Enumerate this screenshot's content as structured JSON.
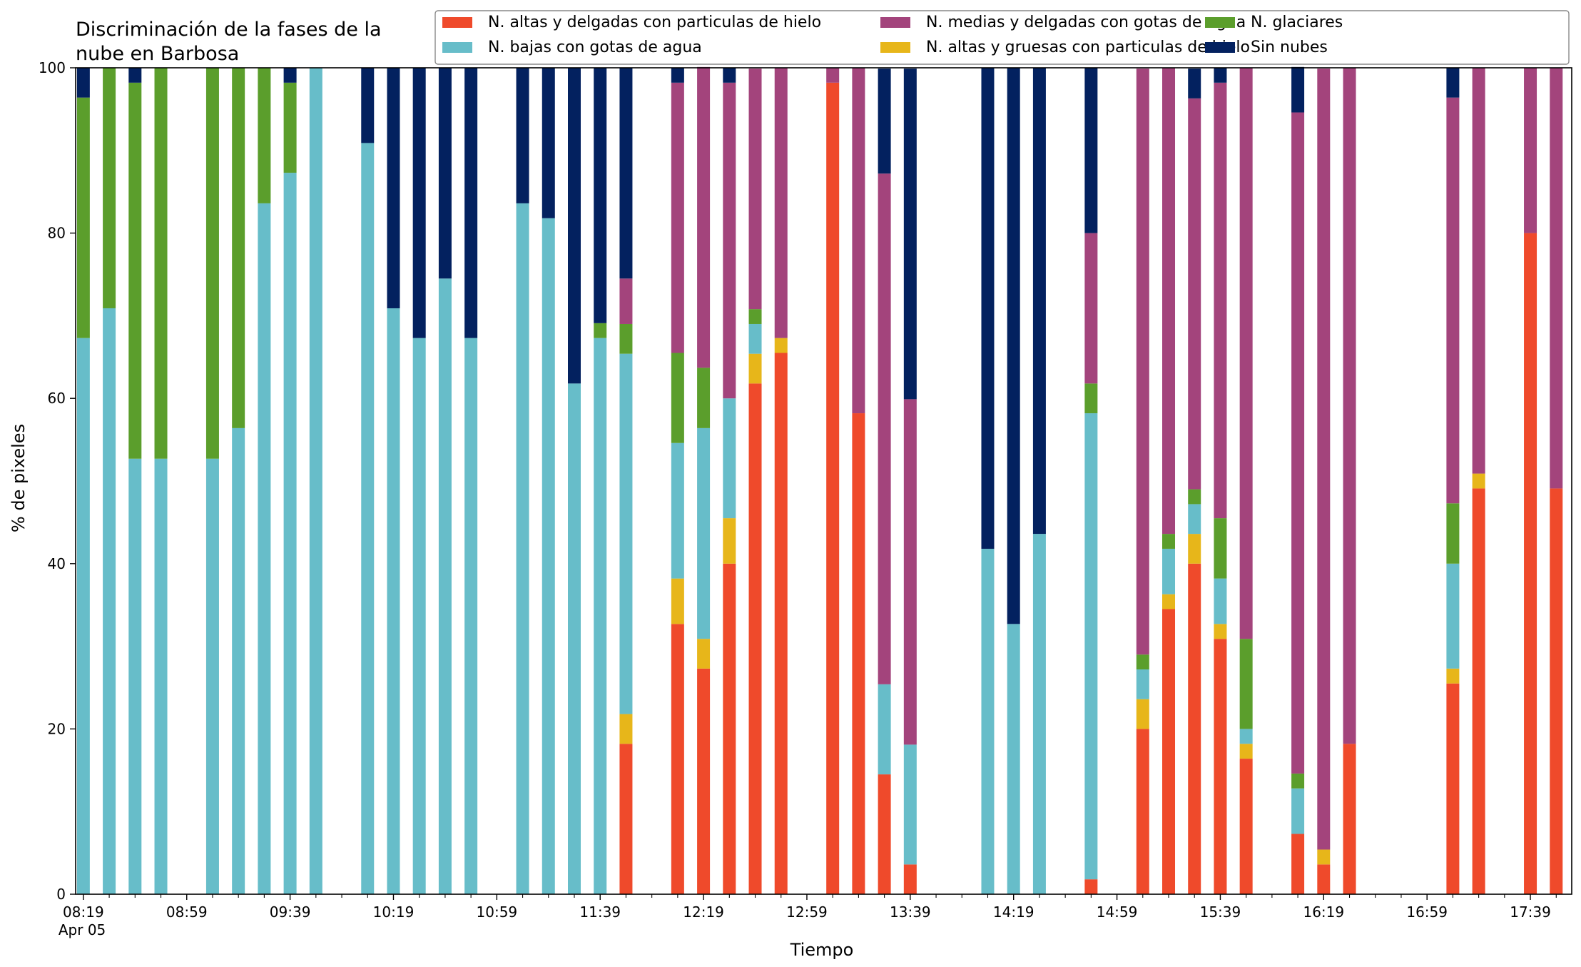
{
  "chart_data": {
    "type": "bar",
    "stacked": true,
    "title_lines": [
      "Discriminación de la fases de la",
      "nube en Barbosa"
    ],
    "xlabel": "Tiempo",
    "ylabel": "% de pixeles",
    "ylim": [
      0,
      100
    ],
    "yticks": [
      0,
      20,
      40,
      60,
      80,
      100
    ],
    "grid": false,
    "legend_position": "top-right",
    "date_label": "Apr 05",
    "x_range_minutes": [
      496,
      1075
    ],
    "xtick_labels": [
      {
        "minute": 499,
        "label": "08:19"
      },
      {
        "minute": 539,
        "label": "08:59"
      },
      {
        "minute": 579,
        "label": "09:39"
      },
      {
        "minute": 619,
        "label": "10:19"
      },
      {
        "minute": 659,
        "label": "10:59"
      },
      {
        "minute": 699,
        "label": "11:39"
      },
      {
        "minute": 739,
        "label": "12:19"
      },
      {
        "minute": 779,
        "label": "12:59"
      },
      {
        "minute": 819,
        "label": "13:39"
      },
      {
        "minute": 859,
        "label": "14:19"
      },
      {
        "minute": 899,
        "label": "14:59"
      },
      {
        "minute": 939,
        "label": "15:39"
      },
      {
        "minute": 979,
        "label": "16:19"
      },
      {
        "minute": 1019,
        "label": "16:59"
      },
      {
        "minute": 1059,
        "label": "17:39"
      }
    ],
    "series": [
      {
        "name": "N. altas y delgadas con particulas de hielo",
        "color": "#ef4a2b"
      },
      {
        "name": "N. altas y gruesas con particulas de hielo",
        "color": "#e7b61a"
      },
      {
        "name": "N. bajas con gotas de agua",
        "color": "#67bdc9"
      },
      {
        "name": "N. glaciares",
        "color": "#5b9e2c"
      },
      {
        "name": "N. medias y delgadas con gotas de agua",
        "color": "#a3447c"
      },
      {
        "name": "Sin nubes",
        "color": "#03215f"
      }
    ],
    "legend_order": [
      0,
      2,
      4,
      1,
      3,
      5
    ],
    "bars": [
      {
        "time": "08:19",
        "values": [
          0,
          0,
          67.3,
          29.1,
          0,
          3.6
        ]
      },
      {
        "time": "08:29",
        "values": [
          0,
          0,
          70.9,
          29.1,
          0,
          0
        ]
      },
      {
        "time": "08:39",
        "values": [
          0,
          0,
          52.7,
          45.5,
          0,
          1.8
        ]
      },
      {
        "time": "08:49",
        "values": [
          0,
          0,
          52.7,
          47.3,
          0,
          0
        ]
      },
      {
        "time": "09:09",
        "values": [
          0,
          0,
          52.7,
          47.3,
          0,
          0
        ]
      },
      {
        "time": "09:19",
        "values": [
          0,
          0,
          56.4,
          43.6,
          0,
          0
        ]
      },
      {
        "time": "09:29",
        "values": [
          0,
          0,
          83.6,
          16.4,
          0,
          0
        ]
      },
      {
        "time": "09:39",
        "values": [
          0,
          0,
          87.3,
          10.9,
          0,
          1.8
        ]
      },
      {
        "time": "09:49",
        "values": [
          0,
          0,
          100,
          0,
          0,
          0
        ]
      },
      {
        "time": "10:09",
        "values": [
          0,
          0,
          90.9,
          0,
          0,
          9.1
        ]
      },
      {
        "time": "10:19",
        "values": [
          0,
          0,
          70.9,
          0,
          0,
          29.1
        ]
      },
      {
        "time": "10:29",
        "values": [
          0,
          0,
          67.3,
          0,
          0,
          32.7
        ]
      },
      {
        "time": "10:39",
        "values": [
          0,
          0,
          74.5,
          0,
          0,
          25.5
        ]
      },
      {
        "time": "10:49",
        "values": [
          0,
          0,
          67.3,
          0,
          0,
          32.7
        ]
      },
      {
        "time": "11:09",
        "values": [
          0,
          0,
          83.6,
          0,
          0,
          16.4
        ]
      },
      {
        "time": "11:19",
        "values": [
          0,
          0,
          81.8,
          0,
          0,
          18.2
        ]
      },
      {
        "time": "11:29",
        "values": [
          0,
          0,
          61.8,
          0,
          0,
          38.2
        ]
      },
      {
        "time": "11:39",
        "values": [
          0,
          0,
          67.3,
          1.8,
          0,
          30.9
        ]
      },
      {
        "time": "11:49",
        "values": [
          18.2,
          3.6,
          43.6,
          3.6,
          5.5,
          25.5
        ]
      },
      {
        "time": "12:09",
        "values": [
          32.7,
          5.5,
          16.4,
          10.9,
          32.7,
          1.8
        ]
      },
      {
        "time": "12:19",
        "values": [
          27.3,
          3.6,
          25.5,
          7.3,
          36.4,
          0
        ]
      },
      {
        "time": "12:29",
        "values": [
          40.0,
          5.5,
          14.5,
          0,
          38.2,
          1.8
        ]
      },
      {
        "time": "12:39",
        "values": [
          61.8,
          3.6,
          3.6,
          1.8,
          29.1,
          0
        ]
      },
      {
        "time": "12:49",
        "values": [
          65.5,
          1.8,
          0,
          0,
          32.7,
          0
        ]
      },
      {
        "time": "13:09",
        "values": [
          98.2,
          0,
          0,
          0,
          1.8,
          0
        ]
      },
      {
        "time": "13:19",
        "values": [
          58.2,
          0,
          0,
          0,
          41.8,
          0
        ]
      },
      {
        "time": "13:29",
        "values": [
          14.5,
          0,
          10.9,
          0,
          61.8,
          12.7
        ]
      },
      {
        "time": "13:39",
        "values": [
          3.6,
          0,
          14.5,
          0,
          41.8,
          40.0
        ]
      },
      {
        "time": "14:09",
        "values": [
          0,
          0,
          41.8,
          0,
          0,
          58.2
        ]
      },
      {
        "time": "14:19",
        "values": [
          0,
          0,
          32.7,
          0,
          0,
          67.3
        ]
      },
      {
        "time": "14:29",
        "values": [
          0,
          0,
          43.6,
          0,
          0,
          56.4
        ]
      },
      {
        "time": "14:49",
        "values": [
          1.8,
          0,
          56.4,
          3.6,
          18.2,
          20.0
        ]
      },
      {
        "time": "15:09",
        "values": [
          20.0,
          3.6,
          3.6,
          1.8,
          70.9,
          0
        ]
      },
      {
        "time": "15:19",
        "values": [
          34.5,
          1.8,
          5.5,
          1.8,
          56.4,
          0
        ]
      },
      {
        "time": "15:29",
        "values": [
          40.0,
          3.6,
          3.6,
          1.8,
          47.3,
          3.6
        ]
      },
      {
        "time": "15:39",
        "values": [
          30.9,
          1.8,
          5.5,
          7.3,
          52.7,
          1.8
        ]
      },
      {
        "time": "15:49",
        "values": [
          16.4,
          1.8,
          1.8,
          10.9,
          69.1,
          0
        ]
      },
      {
        "time": "16:09",
        "values": [
          7.3,
          0,
          5.5,
          1.8,
          80.0,
          5.5
        ]
      },
      {
        "time": "16:19",
        "values": [
          3.6,
          1.8,
          0,
          0,
          94.5,
          0
        ]
      },
      {
        "time": "16:29",
        "values": [
          18.2,
          0,
          0,
          0,
          81.8,
          0
        ]
      },
      {
        "time": "17:09",
        "values": [
          25.5,
          1.8,
          12.7,
          7.3,
          49.1,
          3.6
        ]
      },
      {
        "time": "17:19",
        "values": [
          49.1,
          1.8,
          0,
          0,
          49.1,
          0
        ]
      },
      {
        "time": "17:39",
        "values": [
          80.0,
          0,
          0,
          0,
          20.0,
          0
        ]
      },
      {
        "time": "17:49",
        "values": [
          49.1,
          0,
          0,
          0,
          50.9,
          0
        ]
      }
    ]
  }
}
